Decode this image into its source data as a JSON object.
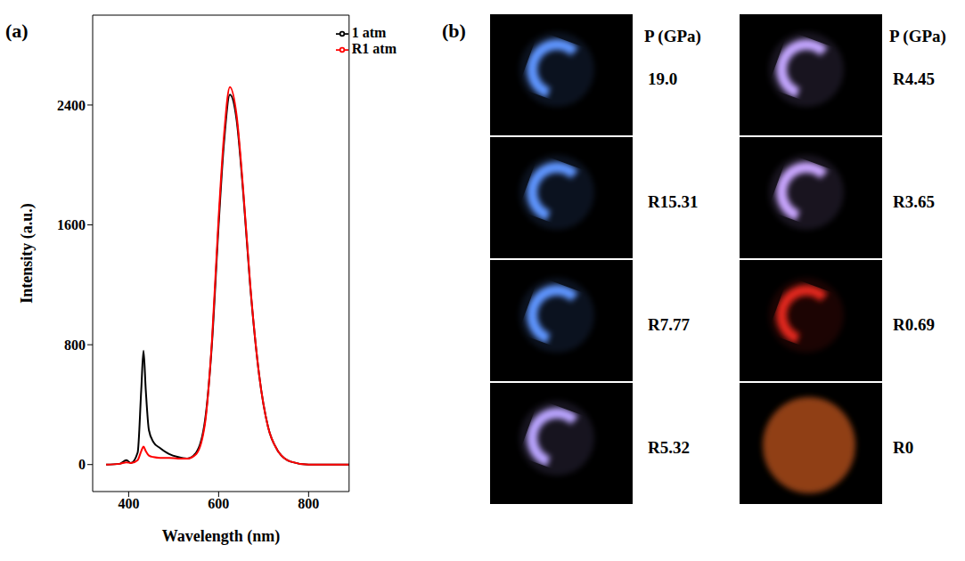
{
  "chart_data": {
    "type": "line",
    "title": "(a)",
    "x_label": "Wavelength (nm)",
    "y_label": "Intensity (a.u.)",
    "x": [
      350,
      380,
      395,
      405,
      420,
      428,
      433,
      438,
      445,
      455,
      470,
      490,
      510,
      530,
      550,
      570,
      585,
      600,
      612,
      625,
      640,
      655,
      670,
      690,
      710,
      730,
      760,
      800,
      900
    ],
    "series": [
      {
        "name": "1 atm",
        "color": "#000000",
        "values": [
          0,
          5,
          30,
          10,
          80,
          500,
          760,
          500,
          230,
          150,
          110,
          70,
          50,
          40,
          80,
          300,
          800,
          1600,
          2150,
          2470,
          2300,
          1800,
          1200,
          600,
          250,
          100,
          20,
          0,
          0
        ]
      },
      {
        "name": "R1 atm",
        "color": "#ff0000",
        "values": [
          0,
          5,
          15,
          10,
          30,
          90,
          120,
          90,
          60,
          50,
          45,
          45,
          40,
          40,
          70,
          280,
          820,
          1650,
          2200,
          2520,
          2330,
          1820,
          1210,
          600,
          250,
          100,
          20,
          0,
          0
        ]
      }
    ],
    "xlim": [
      320,
      890
    ],
    "ylim": [
      -180,
      3000
    ],
    "xticks": [
      400,
      600,
      800
    ],
    "yticks": [
      0,
      800,
      1600,
      2400
    ],
    "legend": "upper right"
  },
  "panel_b": {
    "label": "(b)",
    "columns": [
      {
        "header": "P (GPa)",
        "images": [
          "19.0",
          "R15.31",
          "R7.77",
          "R5.32"
        ]
      },
      {
        "header": "P (GPa)",
        "images": [
          "R4.45",
          "R3.65",
          "R0.69",
          "R0"
        ]
      }
    ]
  }
}
